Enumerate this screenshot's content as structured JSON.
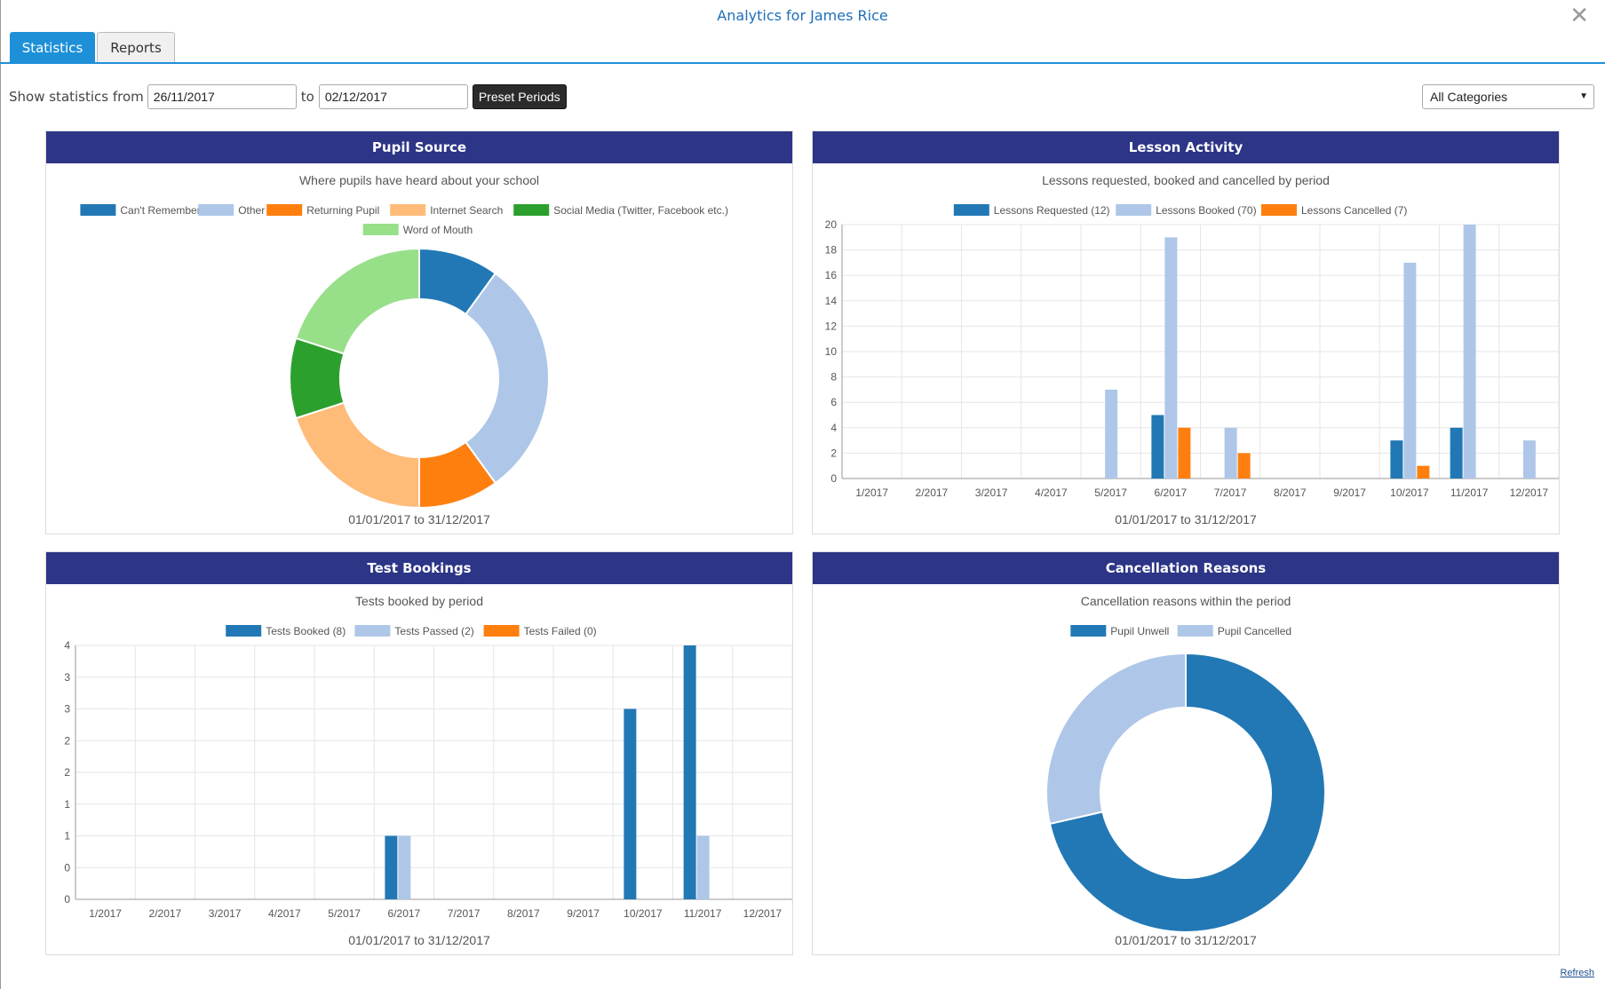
{
  "window": {
    "title": "Analytics for James Rice",
    "close_icon": "close-icon"
  },
  "tabs": [
    {
      "label": "Statistics",
      "active": true
    },
    {
      "label": "Reports",
      "active": false
    }
  ],
  "filter": {
    "label": "Show statistics from",
    "from_value": "26/11/2017",
    "to_label": "to",
    "to_value": "02/12/2017",
    "preset_label": "Preset Periods",
    "category_value": "All Categories"
  },
  "footer": {
    "refresh_label": "Refresh"
  },
  "colors": {
    "header": "#2c3586",
    "accent": "#1e90d8",
    "dark_blue": "#2278b5",
    "light_blue": "#aec7e8",
    "orange": "#ff7f0e",
    "light_orange": "#ffbb78",
    "green": "#2ca02c",
    "light_green": "#98df8a"
  },
  "panels": {
    "pupil_source": {
      "title": "Pupil Source",
      "subtitle": "Where pupils have heard about your school",
      "period": "01/01/2017 to 31/12/2017"
    },
    "lesson_activity": {
      "title": "Lesson Activity",
      "subtitle": "Lessons requested, booked and cancelled by period",
      "period": "01/01/2017 to 31/12/2017"
    },
    "test_bookings": {
      "title": "Test Bookings",
      "subtitle": "Tests booked by period",
      "period": "01/01/2017 to 31/12/2017"
    },
    "cancellation_reasons": {
      "title": "Cancellation Reasons",
      "subtitle": "Cancellation reasons within the period",
      "period": "01/01/2017 to 31/12/2017"
    }
  },
  "chart_data": [
    {
      "id": "pupil_source",
      "type": "pie",
      "donut": true,
      "legend_position": "top",
      "labels": [
        "Can't Remember",
        "Other",
        "Returning Pupil",
        "Internet Search",
        "Social Media (Twitter, Facebook etc.)",
        "Word of Mouth"
      ],
      "values": [
        1,
        3,
        1,
        2,
        1,
        2
      ],
      "colors": [
        "#2278b5",
        "#aec7e8",
        "#ff7f0e",
        "#ffbb78",
        "#2ca02c",
        "#98df8a"
      ]
    },
    {
      "id": "lesson_activity",
      "type": "bar",
      "legend_position": "top",
      "grid": true,
      "categories": [
        "1/2017",
        "2/2017",
        "3/2017",
        "4/2017",
        "5/2017",
        "6/2017",
        "7/2017",
        "8/2017",
        "9/2017",
        "10/2017",
        "11/2017",
        "12/2017"
      ],
      "series": [
        {
          "name": "Lessons Requested (12)",
          "color": "#2278b5",
          "values": [
            0,
            0,
            0,
            0,
            0,
            5,
            0,
            0,
            0,
            3,
            4,
            0
          ]
        },
        {
          "name": "Lessons Booked (70)",
          "color": "#aec7e8",
          "values": [
            0,
            0,
            0,
            0,
            7,
            19,
            4,
            0,
            0,
            17,
            20,
            3
          ]
        },
        {
          "name": "Lessons Cancelled (7)",
          "color": "#ff7f0e",
          "values": [
            0,
            0,
            0,
            0,
            0,
            4,
            2,
            0,
            0,
            1,
            0,
            0
          ]
        }
      ],
      "ylim": [
        0,
        20
      ],
      "yticks": [
        "0",
        "2",
        "4",
        "6",
        "8",
        "10",
        "12",
        "14",
        "16",
        "18",
        "20"
      ]
    },
    {
      "id": "test_bookings",
      "type": "bar",
      "legend_position": "top",
      "grid": true,
      "categories": [
        "1/2017",
        "2/2017",
        "3/2017",
        "4/2017",
        "5/2017",
        "6/2017",
        "7/2017",
        "8/2017",
        "9/2017",
        "10/2017",
        "11/2017",
        "12/2017"
      ],
      "series": [
        {
          "name": "Tests Booked (8)",
          "color": "#2278b5",
          "values": [
            0,
            0,
            0,
            0,
            0,
            1,
            0,
            0,
            0,
            3,
            4,
            0
          ]
        },
        {
          "name": "Tests Passed (2)",
          "color": "#aec7e8",
          "values": [
            0,
            0,
            0,
            0,
            0,
            1,
            0,
            0,
            0,
            0,
            1,
            0
          ]
        },
        {
          "name": "Tests Failed (0)",
          "color": "#ff7f0e",
          "values": [
            0,
            0,
            0,
            0,
            0,
            0,
            0,
            0,
            0,
            0,
            0,
            0
          ]
        }
      ],
      "ylim": [
        0,
        4
      ],
      "yticks": [
        "0",
        "0",
        "1",
        "1",
        "2",
        "2",
        "3",
        "3",
        "4"
      ]
    },
    {
      "id": "cancellation_reasons",
      "type": "pie",
      "donut": true,
      "legend_position": "top",
      "labels": [
        "Pupil Unwell",
        "Pupil Cancelled"
      ],
      "values": [
        5,
        2
      ],
      "colors": [
        "#2278b5",
        "#aec7e8"
      ]
    }
  ]
}
